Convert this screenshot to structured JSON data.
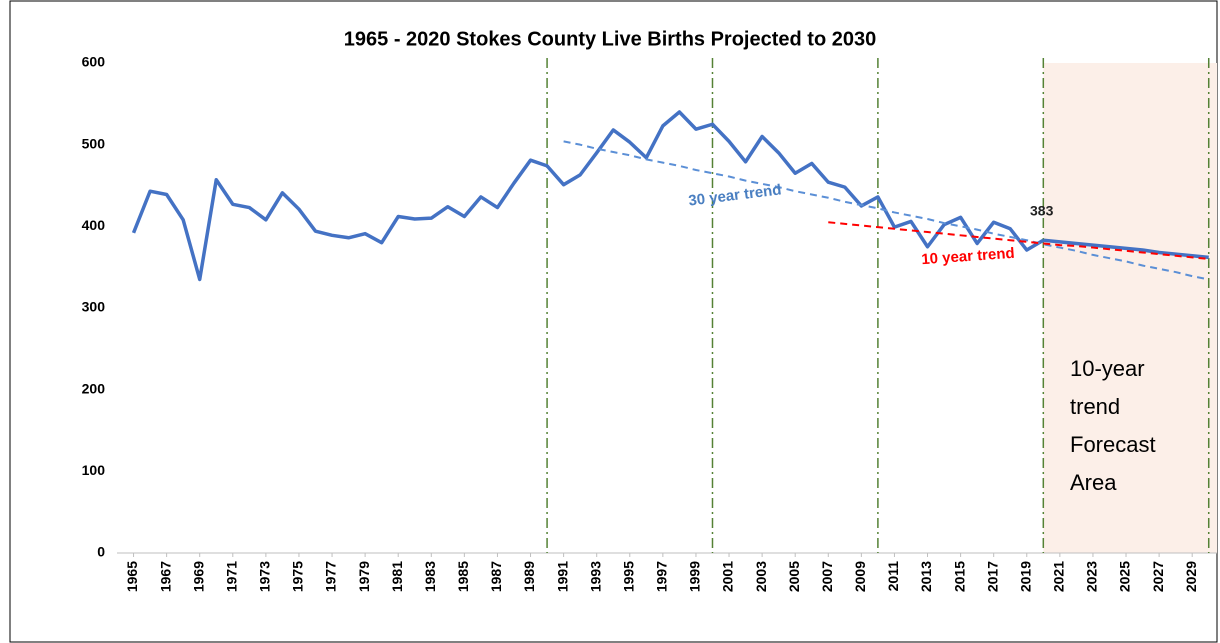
{
  "chart_data": {
    "type": "line",
    "title": "1965 - 2020 Stokes County Live Births Projected to 2030",
    "x": [
      1965,
      1966,
      1967,
      1968,
      1969,
      1970,
      1971,
      1972,
      1973,
      1974,
      1975,
      1976,
      1977,
      1978,
      1979,
      1980,
      1981,
      1982,
      1983,
      1984,
      1985,
      1986,
      1987,
      1988,
      1989,
      1990,
      1991,
      1992,
      1993,
      1994,
      1995,
      1996,
      1997,
      1998,
      1999,
      2000,
      2001,
      2002,
      2003,
      2004,
      2005,
      2006,
      2007,
      2008,
      2009,
      2010,
      2011,
      2012,
      2013,
      2014,
      2015,
      2016,
      2017,
      2018,
      2019,
      2020,
      2021,
      2022,
      2023,
      2024,
      2025,
      2026,
      2027,
      2028,
      2029,
      2030
    ],
    "series": [
      {
        "color": "#4472c4",
        "dash": "solid",
        "values": [
          392,
          443,
          439,
          408,
          335,
          457,
          427,
          423,
          408,
          441,
          421,
          394,
          389,
          386,
          391,
          380,
          412,
          409,
          410,
          424,
          412,
          436,
          423,
          453,
          481,
          474,
          451,
          463,
          490,
          518,
          503,
          484,
          523,
          540,
          519,
          525,
          504,
          479,
          510,
          490,
          465,
          477,
          454,
          448,
          425,
          436,
          399,
          406,
          375,
          402,
          411,
          379,
          405,
          397,
          371,
          383,
          null,
          null,
          null,
          null,
          null,
          null,
          null,
          null,
          null,
          null
        ]
      },
      {
        "color": "#4472c4",
        "dash": "solid",
        "values": [
          null,
          null,
          null,
          null,
          null,
          null,
          null,
          null,
          null,
          null,
          null,
          null,
          null,
          null,
          null,
          null,
          null,
          null,
          null,
          null,
          null,
          null,
          null,
          null,
          null,
          null,
          null,
          null,
          null,
          null,
          null,
          null,
          null,
          null,
          null,
          null,
          null,
          null,
          null,
          null,
          null,
          null,
          null,
          null,
          null,
          null,
          null,
          null,
          null,
          null,
          null,
          null,
          null,
          null,
          null,
          383,
          381,
          379,
          377,
          375,
          373,
          371,
          368,
          366,
          364,
          362
        ]
      },
      {
        "color": "#5b8fd6",
        "dash": "dashed",
        "values": [
          null,
          null,
          null,
          null,
          null,
          null,
          null,
          null,
          null,
          null,
          null,
          null,
          null,
          null,
          null,
          null,
          null,
          null,
          null,
          null,
          null,
          null,
          null,
          null,
          null,
          null,
          504,
          500,
          495,
          491,
          487,
          482,
          478,
          474,
          469,
          465,
          461,
          456,
          452,
          448,
          443,
          439,
          435,
          430,
          426,
          422,
          417,
          413,
          409,
          404,
          400,
          396,
          391,
          387,
          383,
          378,
          374,
          370,
          365,
          361,
          357,
          352,
          348,
          344,
          339,
          335
        ]
      },
      {
        "color": "#ff0000",
        "dash": "dashed",
        "values": [
          null,
          null,
          null,
          null,
          null,
          null,
          null,
          null,
          null,
          null,
          null,
          null,
          null,
          null,
          null,
          null,
          null,
          null,
          null,
          null,
          null,
          null,
          null,
          null,
          null,
          null,
          null,
          null,
          null,
          null,
          null,
          null,
          null,
          null,
          null,
          null,
          null,
          null,
          null,
          null,
          null,
          null,
          405,
          403,
          401,
          399,
          397,
          395,
          393,
          391,
          389,
          387,
          385,
          383,
          381,
          379,
          377,
          376,
          374,
          372,
          370,
          368,
          366,
          364,
          362,
          360
        ]
      }
    ],
    "xlim": [
      1964,
      2030.5
    ],
    "xticks": [
      1965,
      1967,
      1969,
      1971,
      1973,
      1975,
      1977,
      1979,
      1981,
      1983,
      1985,
      1987,
      1989,
      1991,
      1993,
      1995,
      1997,
      1999,
      2001,
      2003,
      2005,
      2007,
      2009,
      2011,
      2013,
      2015,
      2017,
      2019,
      2021,
      2023,
      2025,
      2027,
      2029
    ],
    "ylim": [
      0,
      600
    ],
    "yticks": [
      0,
      100,
      200,
      300,
      400,
      500,
      600
    ],
    "grid": false,
    "vlines": [
      1990,
      2000,
      2010,
      2020,
      2030
    ],
    "vline_color": "#548235",
    "forecast_region": [
      2020,
      2030.5
    ],
    "forecast_color": "#fcefe8",
    "annotations": {
      "trend30": "30 year trend",
      "trend10": "10 year trend",
      "last_value": "383",
      "forecast": [
        "10-year",
        "trend",
        "Forecast",
        "Area"
      ]
    }
  }
}
